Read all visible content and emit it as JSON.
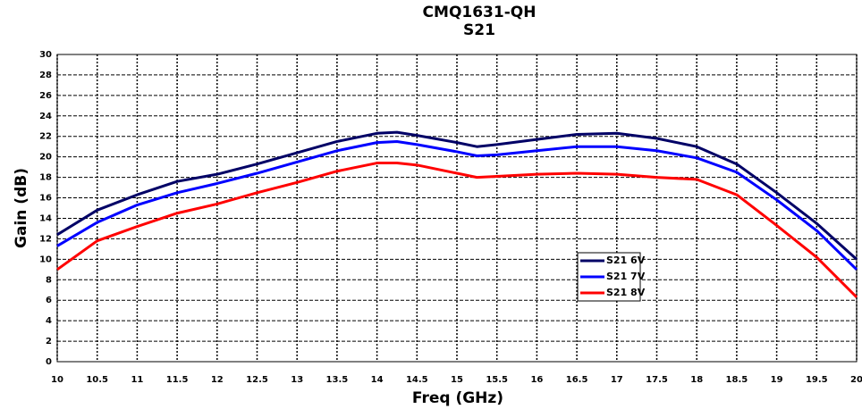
{
  "chart_data": {
    "type": "line",
    "title": "CMQ1631-QH",
    "subtitle": "S21",
    "x_label": "Freq (GHz)",
    "y_label": "Gain (dB)",
    "x": [
      10,
      10.5,
      11,
      11.5,
      12,
      12.5,
      13,
      13.5,
      14,
      14.25,
      14.5,
      15,
      15.25,
      15.5,
      16,
      16.5,
      17,
      17.5,
      18,
      18.5,
      19,
      19.5,
      20
    ],
    "series": [
      {
        "name": "S21 6V",
        "color": "#000066",
        "values": [
          12.4,
          14.8,
          16.3,
          17.6,
          18.3,
          19.3,
          20.4,
          21.5,
          22.3,
          22.4,
          22.1,
          21.4,
          21.0,
          21.2,
          21.7,
          22.2,
          22.3,
          21.8,
          21.0,
          19.3,
          16.5,
          13.5,
          10.0
        ]
      },
      {
        "name": "S21 7V",
        "color": "#0000ff",
        "values": [
          11.3,
          13.6,
          15.3,
          16.5,
          17.4,
          18.4,
          19.5,
          20.6,
          21.4,
          21.5,
          21.2,
          20.5,
          20.1,
          20.2,
          20.6,
          21.0,
          21.0,
          20.6,
          19.9,
          18.5,
          15.8,
          12.8,
          9.0
        ]
      },
      {
        "name": "S21 8V",
        "color": "#ff0000",
        "values": [
          9.0,
          11.8,
          13.2,
          14.5,
          15.4,
          16.5,
          17.5,
          18.6,
          19.4,
          19.4,
          19.2,
          18.4,
          18.0,
          18.1,
          18.3,
          18.4,
          18.3,
          18.0,
          17.8,
          16.3,
          13.3,
          10.2,
          6.3
        ]
      }
    ],
    "xlim": [
      10,
      20
    ],
    "xticks": [
      10,
      10.5,
      11,
      11.5,
      12,
      12.5,
      13,
      13.5,
      14,
      14.5,
      15,
      15.5,
      16,
      16.5,
      17,
      17.5,
      18,
      18.5,
      19,
      19.5,
      20
    ],
    "ylim": [
      0,
      30
    ],
    "yticks": [
      0,
      2,
      4,
      6,
      8,
      10,
      12,
      14,
      16,
      18,
      20,
      22,
      24,
      26,
      28,
      30
    ],
    "grid": true
  }
}
